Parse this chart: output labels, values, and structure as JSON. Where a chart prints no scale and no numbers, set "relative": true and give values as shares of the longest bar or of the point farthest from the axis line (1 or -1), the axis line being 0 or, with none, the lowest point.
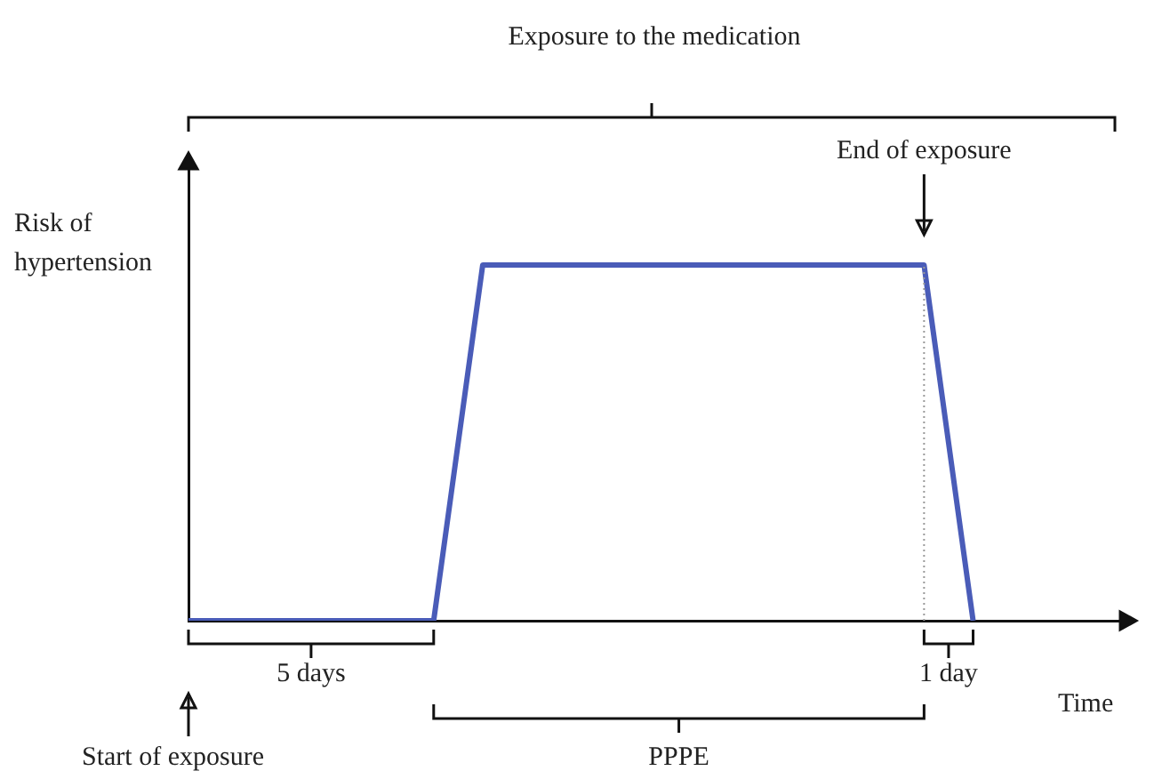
{
  "chart_data": {
    "type": "line",
    "relative": true,
    "xlabel": "Time",
    "ylabel": "Risk of hypertension",
    "legend": false,
    "marker": "none",
    "line_style": "solid",
    "categories": [
      null,
      null,
      null,
      null,
      null,
      null,
      null,
      null,
      null,
      null,
      null,
      null,
      null,
      null,
      null,
      null,
      null,
      null,
      null,
      null
    ],
    "series": [
      {
        "color": "#4a5cb8",
        "values": [
          0,
          0,
          0,
          0,
          0,
          0,
          1,
          1,
          1,
          1,
          1,
          1,
          1,
          1,
          1,
          1,
          0,
          null,
          null,
          null
        ]
      }
    ],
    "annotations": [
      "Exposure to the medication",
      "End of exposure",
      "5 days",
      "1 day",
      "Start of exposure",
      "PPPE"
    ]
  }
}
